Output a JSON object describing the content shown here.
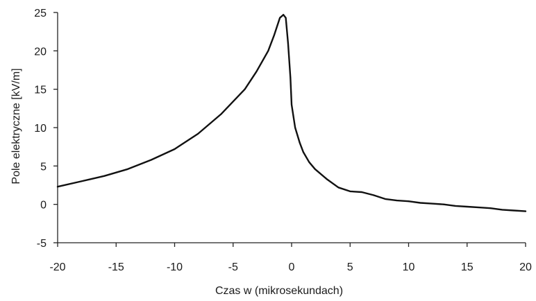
{
  "chart_data": {
    "type": "line",
    "title": "",
    "xlabel": "Czas w (mikrosekundach)",
    "ylabel": "Pole elektryczne [kV/m]",
    "xlim": [
      -20,
      20
    ],
    "ylim": [
      -5,
      25
    ],
    "xticks": [
      "-20",
      "-15",
      "-10",
      "-5",
      "0",
      "5",
      "10",
      "15",
      "20"
    ],
    "yticks": [
      "-5",
      "0",
      "5",
      "10",
      "15",
      "20",
      "25"
    ],
    "grid": false,
    "legend": "none",
    "series": [
      {
        "color": "#111111",
        "x": [
          -20,
          -18,
          -16,
          -14,
          -12,
          -10,
          -8,
          -6,
          -4,
          -3,
          -2,
          -1.5,
          -1,
          -0.7,
          -0.5,
          -0.3,
          -0.1,
          0,
          0.3,
          0.7,
          1,
          1.5,
          2,
          3,
          4,
          5,
          6,
          7,
          8,
          9,
          10,
          11,
          12,
          13,
          14,
          15,
          16,
          17,
          18,
          19,
          20
        ],
        "y": [
          2.3,
          3.0,
          3.7,
          4.6,
          5.8,
          7.2,
          9.2,
          11.8,
          15.0,
          17.3,
          20.0,
          22.0,
          24.3,
          24.7,
          24.3,
          21.0,
          16.5,
          13.0,
          10.0,
          8.0,
          6.8,
          5.5,
          4.6,
          3.3,
          2.2,
          1.7,
          1.6,
          1.2,
          0.7,
          0.5,
          0.4,
          0.2,
          0.1,
          0.0,
          -0.2,
          -0.3,
          -0.4,
          -0.5,
          -0.7,
          -0.8,
          -0.9
        ]
      }
    ]
  }
}
